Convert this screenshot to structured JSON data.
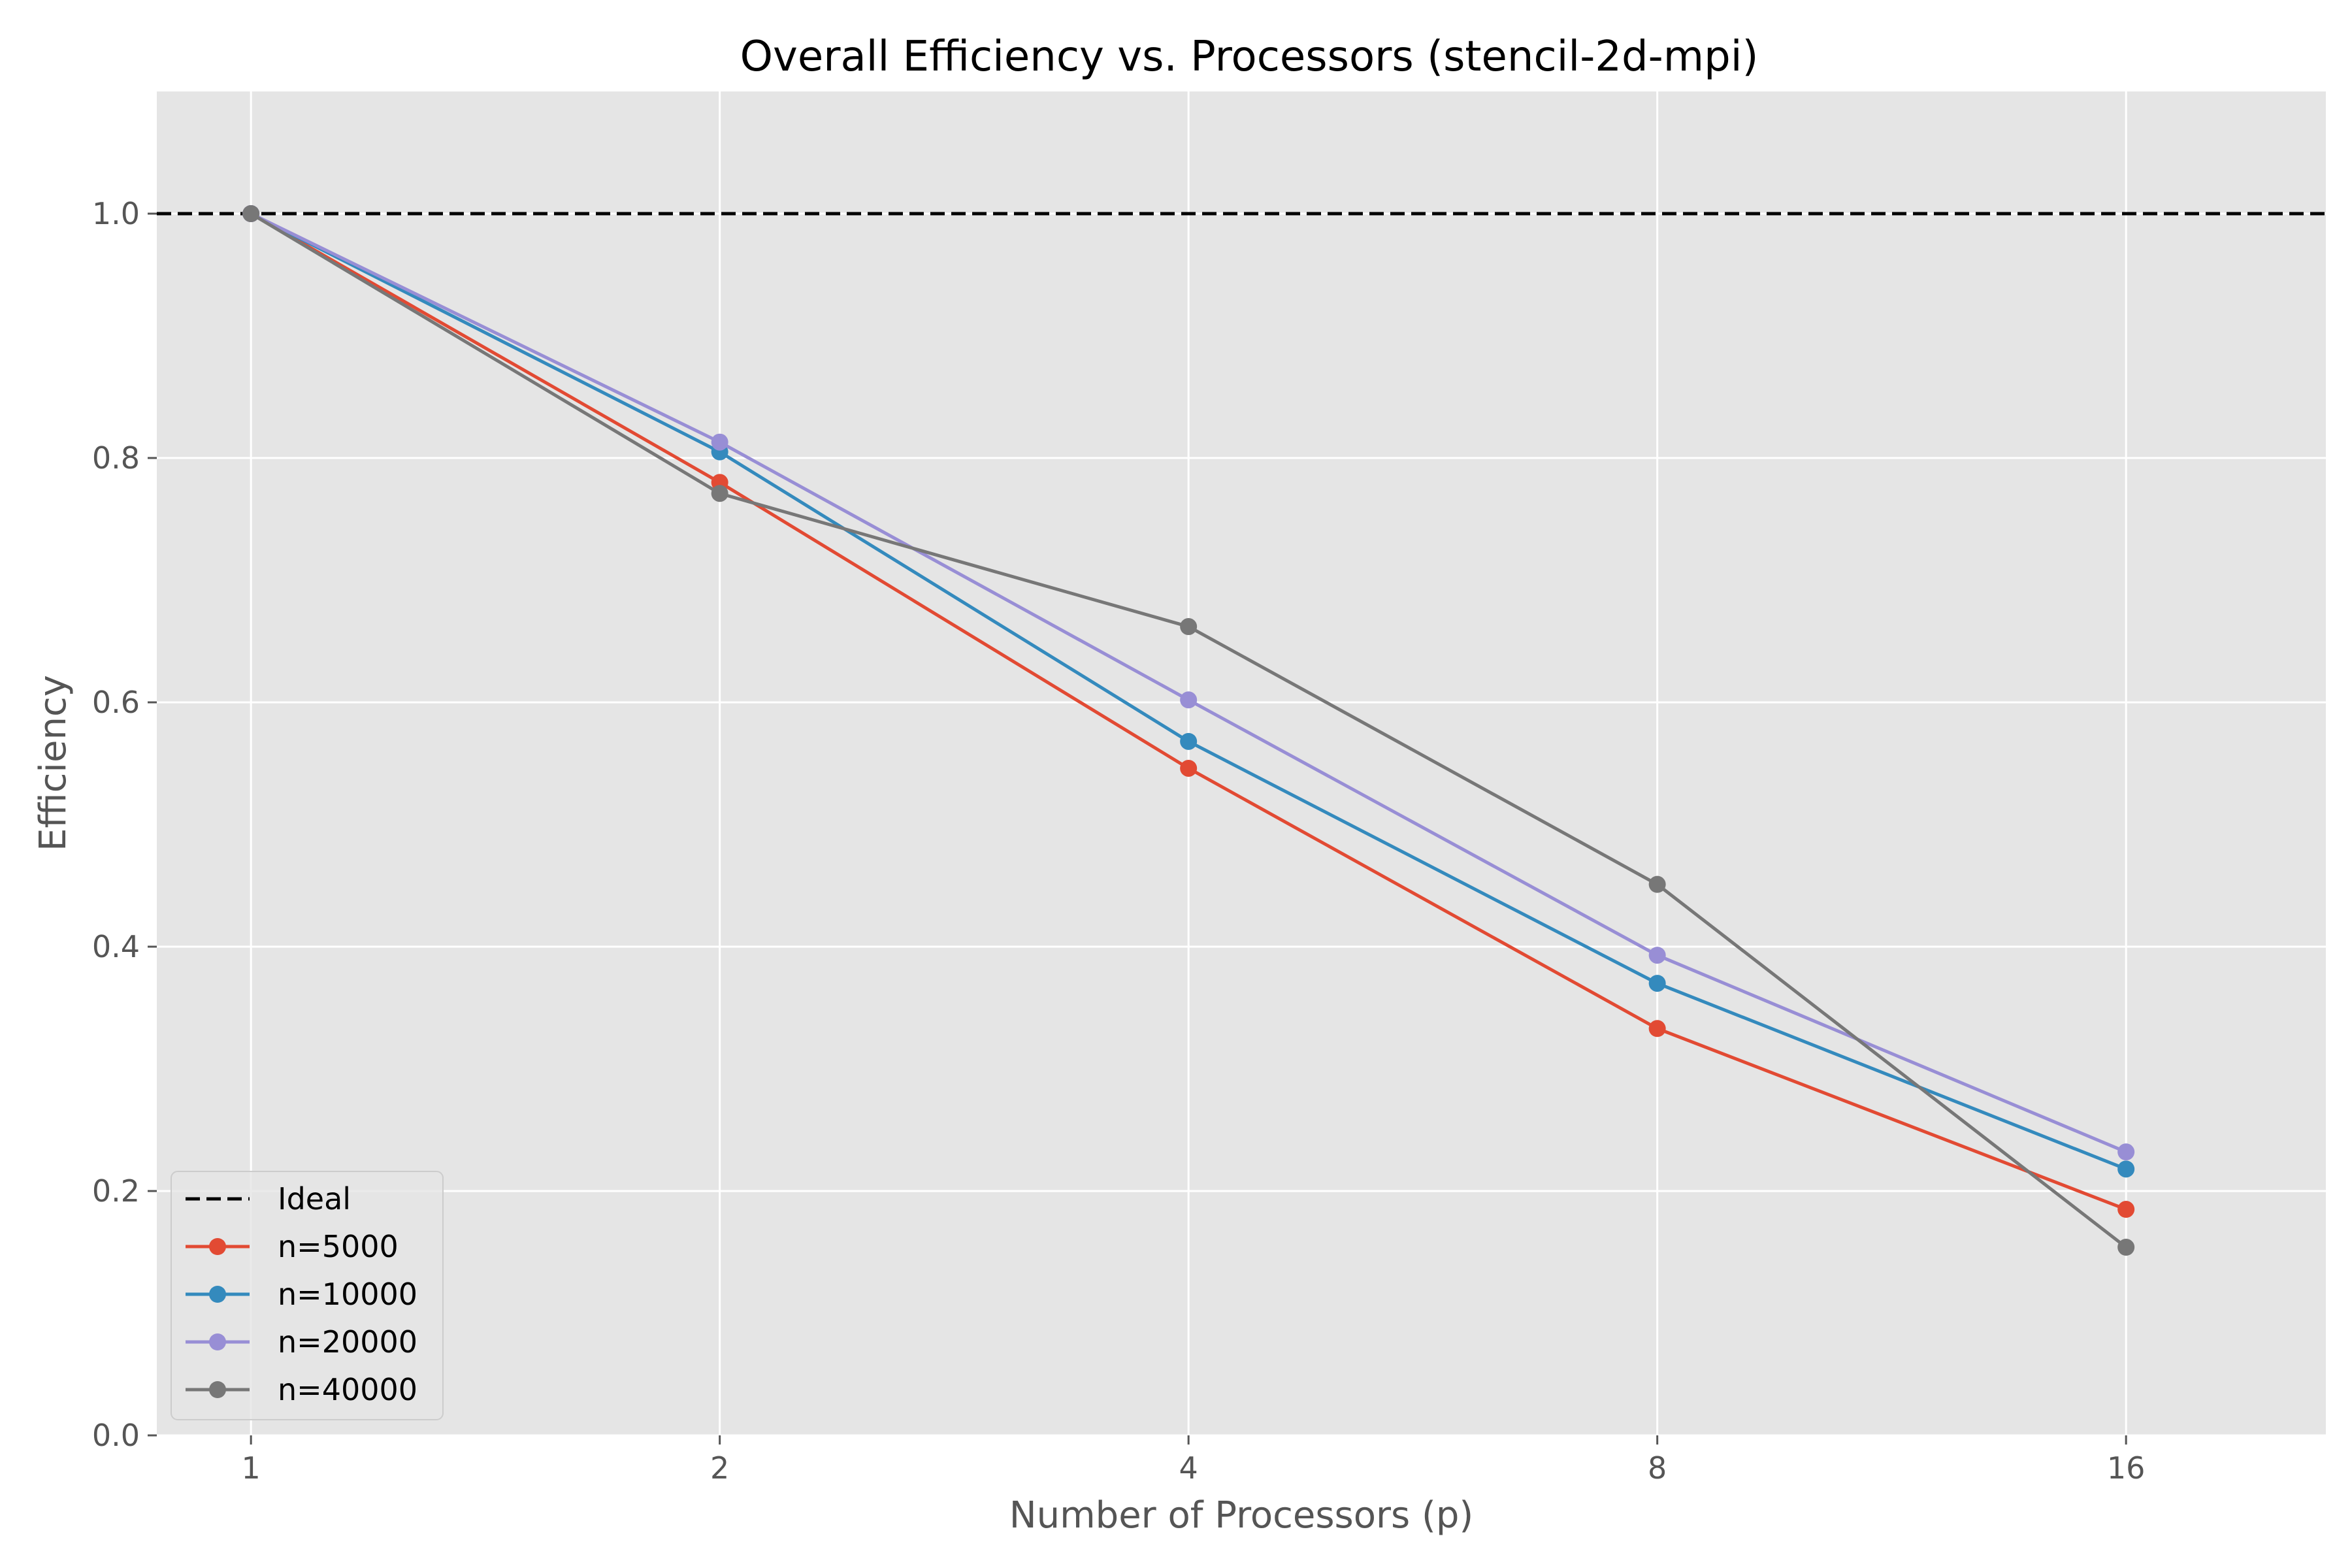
{
  "chart_data": {
    "type": "line",
    "title": "Overall Efficiency vs. Processors (stencil-2d-mpi)",
    "xlabel": "Number of Processors (p)",
    "ylabel": "Efficiency",
    "x_scale": "log2",
    "x": [
      1,
      2,
      4,
      8,
      16
    ],
    "x_ticks": [
      "1",
      "2",
      "4",
      "8",
      "16"
    ],
    "xlim": [
      0.87,
      21.5
    ],
    "ylim": [
      0,
      1.1
    ],
    "y_ticks": [
      "0.0",
      "0.2",
      "0.4",
      "0.6",
      "0.8",
      "1.0"
    ],
    "grid": true,
    "legend_position": "lower-left",
    "reference_line": {
      "name": "Ideal",
      "value": 1.0,
      "color": "#000000",
      "style": "dashed"
    },
    "series": [
      {
        "name": "n=5000",
        "color": "#E24A33",
        "values": [
          1.0,
          0.78,
          0.546,
          0.333,
          0.185
        ]
      },
      {
        "name": "n=10000",
        "color": "#348ABD",
        "values": [
          1.0,
          0.805,
          0.568,
          0.37,
          0.218
        ]
      },
      {
        "name": "n=20000",
        "color": "#988ED5",
        "values": [
          1.0,
          0.813,
          0.602,
          0.393,
          0.232
        ]
      },
      {
        "name": "n=40000",
        "color": "#777777",
        "values": [
          1.0,
          0.771,
          0.662,
          0.451,
          0.154
        ]
      }
    ]
  }
}
